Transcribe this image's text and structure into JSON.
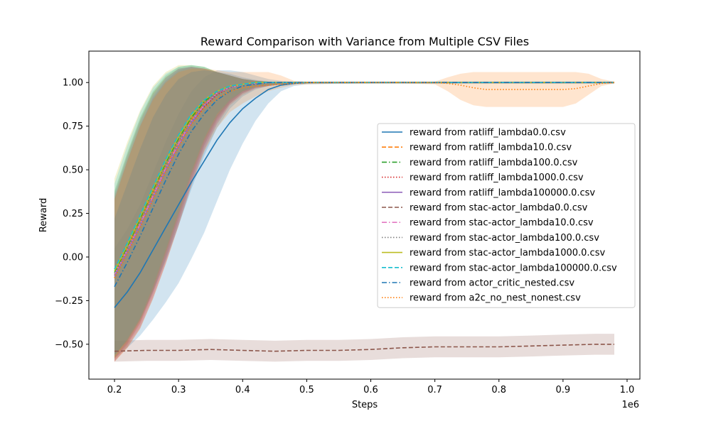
{
  "chart_data": {
    "type": "line",
    "title": "Reward Comparison with Variance from Multiple CSV Files",
    "xlabel": "Steps",
    "ylabel": "Reward",
    "x_offset_label": "1e6",
    "xlim": [
      0.16,
      1.02
    ],
    "ylim": [
      -0.7,
      1.18
    ],
    "x_ticks": [
      0.2,
      0.3,
      0.4,
      0.5,
      0.6,
      0.7,
      0.8,
      0.9,
      1.0
    ],
    "x_tick_labels": [
      "0.2",
      "0.3",
      "0.4",
      "0.5",
      "0.6",
      "0.7",
      "0.8",
      "0.9",
      "1.0"
    ],
    "y_ticks": [
      -0.5,
      -0.25,
      0.0,
      0.25,
      0.5,
      0.75,
      1.0
    ],
    "y_tick_labels": [
      "−0.50",
      "−0.25",
      "0.00",
      "0.25",
      "0.50",
      "0.75",
      "1.00"
    ],
    "grid": false,
    "legend_position": "center-right",
    "series": [
      {
        "name": "reward from ratliff_lambda0.0.csv",
        "color": "#1f77b4",
        "dash": "solid",
        "x": [
          0.2,
          0.22,
          0.24,
          0.26,
          0.28,
          0.3,
          0.32,
          0.34,
          0.36,
          0.38,
          0.4,
          0.42,
          0.44,
          0.46,
          0.48,
          0.5,
          0.6,
          0.7,
          0.8,
          0.9,
          0.98
        ],
        "y": [
          -0.29,
          -0.2,
          -0.09,
          0.04,
          0.17,
          0.3,
          0.43,
          0.55,
          0.67,
          0.77,
          0.85,
          0.91,
          0.96,
          0.985,
          0.995,
          1.0,
          1.0,
          1.0,
          1.0,
          1.0,
          1.0
        ],
        "lower": [
          -0.58,
          -0.52,
          -0.45,
          -0.36,
          -0.26,
          -0.15,
          -0.01,
          0.14,
          0.32,
          0.5,
          0.65,
          0.78,
          0.88,
          0.95,
          0.98,
          0.99,
          0.995,
          0.995,
          0.995,
          0.995,
          0.995
        ],
        "upper": [
          0.05,
          0.16,
          0.3,
          0.48,
          0.66,
          0.82,
          0.95,
          1.03,
          1.07,
          1.07,
          1.06,
          1.04,
          1.02,
          1.01,
          1.005,
          1.005,
          1.005,
          1.005,
          1.005,
          1.005,
          1.005
        ]
      },
      {
        "name": "reward from ratliff_lambda10.0.csv",
        "color": "#ff7f0e",
        "dash": "dashed",
        "x": [
          0.2,
          0.22,
          0.24,
          0.26,
          0.28,
          0.3,
          0.32,
          0.34,
          0.36,
          0.38,
          0.4,
          0.42,
          0.44,
          0.46,
          0.5,
          0.6,
          0.7,
          0.8,
          0.9,
          0.98
        ],
        "y": [
          -0.1,
          0.05,
          0.21,
          0.37,
          0.52,
          0.66,
          0.79,
          0.88,
          0.94,
          0.97,
          0.99,
          0.995,
          1.0,
          1.0,
          1.0,
          1.0,
          1.0,
          1.0,
          1.0,
          1.0
        ],
        "lower": [
          -0.58,
          -0.5,
          -0.38,
          -0.2,
          0.0,
          0.22,
          0.45,
          0.64,
          0.78,
          0.88,
          0.94,
          0.97,
          0.98,
          0.99,
          0.995,
          0.995,
          0.995,
          0.995,
          0.995,
          0.995
        ],
        "upper": [
          0.35,
          0.58,
          0.78,
          0.94,
          1.03,
          1.08,
          1.09,
          1.08,
          1.06,
          1.04,
          1.02,
          1.01,
          1.005,
          1.0,
          1.0,
          1.0,
          1.0,
          1.0,
          1.0,
          1.0
        ]
      },
      {
        "name": "reward from ratliff_lambda100.0.csv",
        "color": "#2ca02c",
        "dash": "dashdot",
        "x": [
          0.2,
          0.22,
          0.24,
          0.26,
          0.28,
          0.3,
          0.32,
          0.34,
          0.36,
          0.38,
          0.4,
          0.42,
          0.44,
          0.46,
          0.5,
          0.6,
          0.7,
          0.8,
          0.9,
          0.98
        ],
        "y": [
          -0.09,
          0.06,
          0.22,
          0.38,
          0.54,
          0.68,
          0.8,
          0.89,
          0.95,
          0.98,
          0.99,
          1.0,
          1.0,
          1.0,
          1.0,
          1.0,
          1.0,
          1.0,
          1.0,
          1.0
        ],
        "lower": [
          -0.58,
          -0.49,
          -0.37,
          -0.19,
          0.02,
          0.24,
          0.47,
          0.66,
          0.8,
          0.89,
          0.95,
          0.975,
          0.985,
          0.99,
          0.995,
          0.995,
          0.995,
          0.995,
          0.995,
          0.995
        ],
        "upper": [
          0.38,
          0.6,
          0.8,
          0.95,
          1.04,
          1.09,
          1.1,
          1.09,
          1.06,
          1.04,
          1.02,
          1.01,
          1.005,
          1.0,
          1.0,
          1.0,
          1.0,
          1.0,
          1.0,
          1.0
        ]
      },
      {
        "name": "reward from ratliff_lambda1000.0.csv",
        "color": "#d62728",
        "dash": "dotted",
        "x": [
          0.2,
          0.22,
          0.24,
          0.26,
          0.28,
          0.3,
          0.32,
          0.34,
          0.36,
          0.38,
          0.4,
          0.42,
          0.44,
          0.46,
          0.5,
          0.6,
          0.7,
          0.8,
          0.9,
          0.98
        ],
        "y": [
          -0.12,
          0.02,
          0.17,
          0.33,
          0.49,
          0.63,
          0.76,
          0.86,
          0.93,
          0.97,
          0.99,
          0.995,
          1.0,
          1.0,
          1.0,
          1.0,
          1.0,
          1.0,
          1.0,
          1.0
        ],
        "lower": [
          -0.6,
          -0.52,
          -0.41,
          -0.24,
          -0.04,
          0.18,
          0.41,
          0.61,
          0.76,
          0.87,
          0.93,
          0.965,
          0.98,
          0.99,
          0.995,
          0.995,
          0.995,
          0.995,
          0.995,
          0.995
        ],
        "upper": [
          0.33,
          0.55,
          0.75,
          0.91,
          1.01,
          1.07,
          1.09,
          1.08,
          1.06,
          1.04,
          1.02,
          1.01,
          1.005,
          1.0,
          1.0,
          1.0,
          1.0,
          1.0,
          1.0,
          1.0
        ]
      },
      {
        "name": "reward from ratliff_lambda100000.0.csv",
        "color": "#9467bd",
        "dash": "solid",
        "x": [
          0.2,
          0.22,
          0.24,
          0.26,
          0.28,
          0.3,
          0.32,
          0.34,
          0.36,
          0.38,
          0.4,
          0.42,
          0.44,
          0.46,
          0.5,
          0.6,
          0.7,
          0.8,
          0.9,
          0.98
        ],
        "y": [
          -0.11,
          0.03,
          0.18,
          0.34,
          0.5,
          0.64,
          0.77,
          0.87,
          0.94,
          0.97,
          0.99,
          0.995,
          1.0,
          1.0,
          1.0,
          1.0,
          1.0,
          1.0,
          1.0,
          1.0
        ],
        "lower": [
          -0.6,
          -0.51,
          -0.4,
          -0.23,
          -0.03,
          0.19,
          0.42,
          0.62,
          0.77,
          0.88,
          0.94,
          0.97,
          0.98,
          0.99,
          0.995,
          0.995,
          0.995,
          0.995,
          0.995,
          0.995
        ],
        "upper": [
          0.34,
          0.56,
          0.76,
          0.92,
          1.02,
          1.08,
          1.09,
          1.08,
          1.06,
          1.04,
          1.02,
          1.01,
          1.005,
          1.0,
          1.0,
          1.0,
          1.0,
          1.0,
          1.0,
          1.0
        ]
      },
      {
        "name": "reward from stac-actor_lambda0.0.csv",
        "color": "#8c564b",
        "dash": "dashed",
        "x": [
          0.2,
          0.25,
          0.3,
          0.35,
          0.4,
          0.45,
          0.5,
          0.55,
          0.6,
          0.65,
          0.7,
          0.75,
          0.8,
          0.85,
          0.9,
          0.95,
          0.98
        ],
        "y": [
          -0.54,
          -0.535,
          -0.535,
          -0.53,
          -0.535,
          -0.54,
          -0.535,
          -0.535,
          -0.53,
          -0.52,
          -0.515,
          -0.515,
          -0.515,
          -0.51,
          -0.505,
          -0.5,
          -0.5
        ],
        "lower": [
          -0.6,
          -0.595,
          -0.595,
          -0.59,
          -0.595,
          -0.6,
          -0.595,
          -0.595,
          -0.59,
          -0.58,
          -0.575,
          -0.575,
          -0.575,
          -0.57,
          -0.565,
          -0.56,
          -0.56
        ],
        "upper": [
          -0.48,
          -0.475,
          -0.475,
          -0.47,
          -0.475,
          -0.48,
          -0.475,
          -0.475,
          -0.47,
          -0.46,
          -0.455,
          -0.455,
          -0.455,
          -0.45,
          -0.445,
          -0.44,
          -0.44
        ]
      },
      {
        "name": "reward from stac-actor_lambda10.0.csv",
        "color": "#e377c2",
        "dash": "dashdot",
        "x": [
          0.2,
          0.22,
          0.24,
          0.26,
          0.28,
          0.3,
          0.32,
          0.34,
          0.36,
          0.38,
          0.4,
          0.42,
          0.44,
          0.46,
          0.5,
          0.6,
          0.7,
          0.8,
          0.9,
          0.98
        ],
        "y": [
          -0.1,
          0.04,
          0.19,
          0.35,
          0.51,
          0.65,
          0.78,
          0.87,
          0.94,
          0.97,
          0.99,
          0.995,
          1.0,
          1.0,
          1.0,
          1.0,
          1.0,
          1.0,
          1.0,
          1.0
        ],
        "lower": [
          -0.59,
          -0.5,
          -0.39,
          -0.22,
          -0.02,
          0.2,
          0.43,
          0.63,
          0.78,
          0.88,
          0.94,
          0.97,
          0.98,
          0.99,
          0.995,
          0.995,
          0.995,
          0.995,
          0.995,
          0.995
        ],
        "upper": [
          0.36,
          0.58,
          0.78,
          0.93,
          1.03,
          1.08,
          1.09,
          1.08,
          1.06,
          1.04,
          1.02,
          1.01,
          1.005,
          1.0,
          1.0,
          1.0,
          1.0,
          1.0,
          1.0,
          1.0
        ]
      },
      {
        "name": "reward from stac-actor_lambda100.0.csv",
        "color": "#7f7f7f",
        "dash": "dotted",
        "x": [
          0.2,
          0.22,
          0.24,
          0.26,
          0.28,
          0.3,
          0.32,
          0.34,
          0.36,
          0.38,
          0.4,
          0.42,
          0.44,
          0.46,
          0.5,
          0.6,
          0.7,
          0.8,
          0.9,
          0.98
        ],
        "y": [
          -0.1,
          0.04,
          0.2,
          0.36,
          0.52,
          0.66,
          0.78,
          0.88,
          0.94,
          0.97,
          0.99,
          0.995,
          1.0,
          1.0,
          1.0,
          1.0,
          1.0,
          1.0,
          1.0,
          1.0
        ],
        "lower": [
          -0.59,
          -0.5,
          -0.38,
          -0.21,
          -0.01,
          0.21,
          0.44,
          0.64,
          0.79,
          0.88,
          0.94,
          0.97,
          0.98,
          0.99,
          0.995,
          0.995,
          0.995,
          0.995,
          0.995,
          0.995
        ],
        "upper": [
          0.37,
          0.59,
          0.79,
          0.94,
          1.03,
          1.08,
          1.09,
          1.08,
          1.06,
          1.04,
          1.02,
          1.01,
          1.005,
          1.0,
          1.0,
          1.0,
          1.0,
          1.0,
          1.0,
          1.0
        ]
      },
      {
        "name": "reward from stac-actor_lambda1000.0.csv",
        "color": "#bcbd22",
        "dash": "solid",
        "x": [
          0.2,
          0.22,
          0.24,
          0.26,
          0.28,
          0.3,
          0.32,
          0.34,
          0.36,
          0.38,
          0.4,
          0.42,
          0.44,
          0.46,
          0.5,
          0.6,
          0.7,
          0.8,
          0.9,
          0.98
        ],
        "y": [
          -0.08,
          0.07,
          0.23,
          0.39,
          0.55,
          0.69,
          0.81,
          0.9,
          0.95,
          0.98,
          0.99,
          1.0,
          1.0,
          1.0,
          1.0,
          1.0,
          1.0,
          1.0,
          1.0,
          1.0
        ],
        "lower": [
          -0.58,
          -0.48,
          -0.36,
          -0.18,
          0.03,
          0.25,
          0.48,
          0.67,
          0.81,
          0.9,
          0.95,
          0.975,
          0.985,
          0.99,
          0.995,
          0.995,
          0.995,
          0.995,
          0.995,
          0.995
        ],
        "upper": [
          0.45,
          0.66,
          0.84,
          0.98,
          1.06,
          1.1,
          1.1,
          1.09,
          1.06,
          1.04,
          1.02,
          1.01,
          1.005,
          1.0,
          1.0,
          1.0,
          1.0,
          1.0,
          1.0,
          1.0
        ]
      },
      {
        "name": "reward from stac-actor_lambda100000.0.csv",
        "color": "#17becf",
        "dash": "dashed",
        "x": [
          0.2,
          0.22,
          0.24,
          0.26,
          0.28,
          0.3,
          0.32,
          0.34,
          0.36,
          0.38,
          0.4,
          0.42,
          0.44,
          0.46,
          0.5,
          0.6,
          0.7,
          0.8,
          0.9,
          0.98
        ],
        "y": [
          -0.07,
          0.08,
          0.24,
          0.4,
          0.56,
          0.7,
          0.82,
          0.9,
          0.95,
          0.98,
          0.99,
          1.0,
          1.0,
          1.0,
          1.0,
          1.0,
          1.0,
          1.0,
          1.0,
          1.0
        ],
        "lower": [
          -0.57,
          -0.47,
          -0.35,
          -0.17,
          0.04,
          0.26,
          0.49,
          0.68,
          0.82,
          0.9,
          0.95,
          0.975,
          0.985,
          0.99,
          0.995,
          0.995,
          0.995,
          0.995,
          0.995,
          0.995
        ],
        "upper": [
          0.42,
          0.64,
          0.83,
          0.97,
          1.05,
          1.09,
          1.1,
          1.09,
          1.06,
          1.04,
          1.02,
          1.01,
          1.005,
          1.0,
          1.0,
          1.0,
          1.0,
          1.0,
          1.0,
          1.0
        ]
      },
      {
        "name": "reward from actor_critic_nested.csv",
        "color": "#1f77b4",
        "dash": "dashdot",
        "x": [
          0.2,
          0.22,
          0.24,
          0.26,
          0.28,
          0.3,
          0.32,
          0.34,
          0.36,
          0.38,
          0.4,
          0.42,
          0.44,
          0.46,
          0.5,
          0.6,
          0.7,
          0.8,
          0.9,
          0.98
        ],
        "y": [
          -0.17,
          -0.03,
          0.12,
          0.28,
          0.44,
          0.59,
          0.72,
          0.82,
          0.9,
          0.95,
          0.98,
          0.99,
          1.0,
          1.0,
          1.0,
          1.0,
          1.0,
          1.0,
          1.0,
          1.0
        ],
        "lower": [
          -0.56,
          -0.48,
          -0.36,
          -0.2,
          -0.02,
          0.18,
          0.39,
          0.58,
          0.74,
          0.85,
          0.92,
          0.96,
          0.98,
          0.99,
          0.995,
          0.995,
          0.995,
          0.995,
          0.995,
          0.995
        ],
        "upper": [
          0.22,
          0.42,
          0.62,
          0.8,
          0.93,
          1.02,
          1.06,
          1.07,
          1.06,
          1.05,
          1.03,
          1.015,
          1.005,
          1.0,
          1.0,
          1.0,
          1.0,
          1.0,
          1.0,
          1.0
        ]
      },
      {
        "name": "reward from a2c_no_nest_nonest.csv",
        "color": "#ff7f0e",
        "dash": "dotted",
        "x": [
          0.2,
          0.22,
          0.24,
          0.26,
          0.28,
          0.3,
          0.32,
          0.34,
          0.36,
          0.38,
          0.4,
          0.42,
          0.44,
          0.46,
          0.48,
          0.5,
          0.55,
          0.6,
          0.65,
          0.7,
          0.72,
          0.74,
          0.76,
          0.78,
          0.8,
          0.82,
          0.84,
          0.86,
          0.88,
          0.9,
          0.92,
          0.94,
          0.96,
          0.98
        ],
        "y": [
          -0.12,
          0.02,
          0.17,
          0.33,
          0.49,
          0.63,
          0.76,
          0.85,
          0.91,
          0.95,
          0.97,
          0.98,
          0.985,
          0.99,
          0.995,
          1.0,
          1.0,
          1.0,
          1.0,
          1.0,
          0.995,
          0.985,
          0.97,
          0.96,
          0.96,
          0.96,
          0.96,
          0.96,
          0.96,
          0.96,
          0.965,
          0.98,
          0.995,
          1.0
        ],
        "lower": [
          -0.6,
          -0.52,
          -0.41,
          -0.24,
          -0.04,
          0.18,
          0.41,
          0.6,
          0.74,
          0.83,
          0.88,
          0.92,
          0.95,
          0.97,
          0.985,
          0.99,
          0.995,
          0.995,
          0.995,
          0.99,
          0.95,
          0.9,
          0.87,
          0.86,
          0.86,
          0.86,
          0.86,
          0.86,
          0.86,
          0.86,
          0.88,
          0.93,
          0.98,
          0.995
        ],
        "upper": [
          0.33,
          0.55,
          0.75,
          0.9,
          1.0,
          1.06,
          1.08,
          1.08,
          1.07,
          1.06,
          1.06,
          1.06,
          1.06,
          1.04,
          1.01,
          1.005,
          1.005,
          1.005,
          1.005,
          1.005,
          1.03,
          1.05,
          1.06,
          1.06,
          1.06,
          1.06,
          1.06,
          1.06,
          1.06,
          1.06,
          1.06,
          1.05,
          1.02,
          1.005
        ]
      }
    ]
  }
}
